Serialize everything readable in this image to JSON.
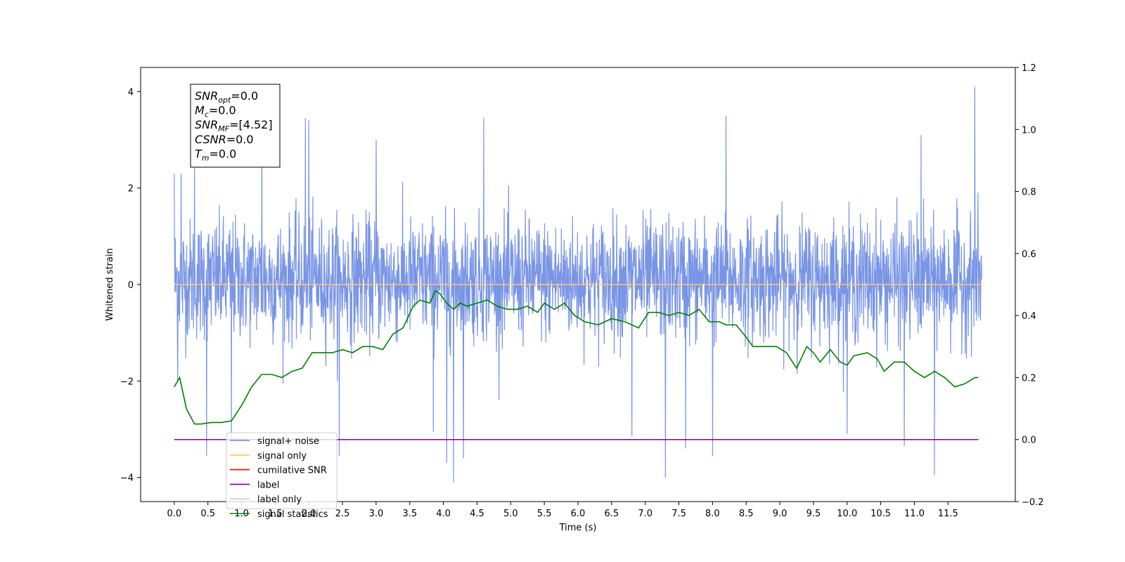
{
  "chart_data": {
    "type": "line",
    "title": "",
    "xlabel": "Time (s)",
    "ylabel": "Whitened strain",
    "y2label": "",
    "xlim": [
      -0.5,
      12.5
    ],
    "ylim": [
      -4.5,
      4.5
    ],
    "y2lim": [
      -0.2,
      1.2
    ],
    "xticks": [
      0.0,
      0.5,
      1.0,
      1.5,
      2.0,
      2.5,
      3.0,
      3.5,
      4.0,
      4.5,
      5.0,
      5.5,
      6.0,
      6.5,
      7.0,
      7.5,
      8.0,
      8.5,
      9.0,
      9.5,
      10.0,
      10.5,
      11.0,
      11.5
    ],
    "xtick_labels": [
      "0.0",
      "0.5",
      "1.0",
      "1.5",
      "2.0",
      "2.5",
      "3.0",
      "3.5",
      "4.0",
      "4.5",
      "5.0",
      "5.5",
      "6.0",
      "6.5",
      "7.0",
      "7.5",
      "8.0",
      "8.5",
      "9.0",
      "9.5",
      "10.0",
      "10.5",
      "11.0",
      "11.5"
    ],
    "yticks": [
      -4,
      -2,
      0,
      2,
      4
    ],
    "ytick_labels": [
      "−4",
      "−2",
      "0",
      "2",
      "4"
    ],
    "y2ticks": [
      -0.2,
      0.0,
      0.2,
      0.4,
      0.6,
      0.8,
      1.0,
      1.2
    ],
    "y2tick_labels": [
      "−0.2",
      "0.0",
      "0.2",
      "0.4",
      "0.6",
      "0.8",
      "1.0",
      "1.2"
    ],
    "grid": false,
    "legend_position": "bottom-left",
    "info_box": {
      "lines": [
        {
          "base": "SNR",
          "sub": "opt",
          "value": "=0.0"
        },
        {
          "base": "M",
          "sub": "c",
          "value": "=0.0"
        },
        {
          "base": "SNR",
          "sub": "MF",
          "value": "=[4.52]"
        },
        {
          "base": "CSNR",
          "sub": "",
          "value": "=0.0"
        },
        {
          "base": "T",
          "sub": "m",
          "value": "=0.0"
        }
      ]
    },
    "series": [
      {
        "name": "signal+ noise",
        "axis": "left",
        "color": "#6a89e3",
        "x_range": [
          0.0,
          12.0
        ],
        "envelope_typical": [
          -1.8,
          2.0
        ],
        "extreme_peaks": [
          {
            "x": 0.0,
            "y": 2.3
          },
          {
            "x": 0.05,
            "y": -2.0
          },
          {
            "x": 0.1,
            "y": 2.3
          },
          {
            "x": 0.3,
            "y": 2.5
          },
          {
            "x": 0.48,
            "y": -3.55
          },
          {
            "x": 0.85,
            "y": -3.2
          },
          {
            "x": 1.3,
            "y": 3.3
          },
          {
            "x": 1.95,
            "y": 3.45
          },
          {
            "x": 2.0,
            "y": 3.4
          },
          {
            "x": 2.45,
            "y": -3.55
          },
          {
            "x": 3.0,
            "y": 3.0
          },
          {
            "x": 3.85,
            "y": -3.05
          },
          {
            "x": 4.05,
            "y": -3.7
          },
          {
            "x": 4.15,
            "y": -4.1
          },
          {
            "x": 4.3,
            "y": -3.6
          },
          {
            "x": 4.6,
            "y": 3.45
          },
          {
            "x": 6.8,
            "y": -3.15
          },
          {
            "x": 7.3,
            "y": -4.0
          },
          {
            "x": 7.6,
            "y": -3.4
          },
          {
            "x": 8.0,
            "y": -3.55
          },
          {
            "x": 8.2,
            "y": 3.5
          },
          {
            "x": 10.0,
            "y": -3.1
          },
          {
            "x": 10.85,
            "y": -3.35
          },
          {
            "x": 11.3,
            "y": -3.95
          },
          {
            "x": 11.1,
            "y": 3.1
          },
          {
            "x": 11.9,
            "y": 4.1
          }
        ]
      },
      {
        "name": "signal only",
        "axis": "left",
        "color": "#ffc66b",
        "x": [
          0.0,
          12.0
        ],
        "y": [
          0.0,
          0.0
        ]
      },
      {
        "name": "cumilative SNR",
        "axis": "right",
        "color": "#ff0000",
        "x": [
          0.0,
          11.95
        ],
        "y": [
          0.0,
          0.0
        ]
      },
      {
        "name": "label",
        "axis": "right",
        "color": "#800080",
        "x": [
          0.0,
          11.95
        ],
        "y": [
          0.0,
          0.0
        ]
      },
      {
        "name": "label only",
        "axis": "right",
        "color": "#cccccc",
        "x": [],
        "y": []
      },
      {
        "name": "signal statistics",
        "axis": "right",
        "color": "#008000",
        "x": [
          0.0,
          0.08,
          0.18,
          0.3,
          0.4,
          0.55,
          0.7,
          0.85,
          1.0,
          1.15,
          1.3,
          1.45,
          1.6,
          1.75,
          1.9,
          2.05,
          2.2,
          2.35,
          2.5,
          2.65,
          2.8,
          2.95,
          3.1,
          3.25,
          3.4,
          3.55,
          3.65,
          3.8,
          3.88,
          3.95,
          4.05,
          4.15,
          4.25,
          4.35,
          4.5,
          4.65,
          4.8,
          4.95,
          5.1,
          5.25,
          5.4,
          5.5,
          5.65,
          5.8,
          5.95,
          6.1,
          6.3,
          6.5,
          6.7,
          6.9,
          7.05,
          7.2,
          7.35,
          7.5,
          7.65,
          7.8,
          7.95,
          8.1,
          8.2,
          8.35,
          8.5,
          8.6,
          8.8,
          8.95,
          9.1,
          9.25,
          9.4,
          9.5,
          9.6,
          9.75,
          9.9,
          10.0,
          10.1,
          10.3,
          10.45,
          10.55,
          10.7,
          10.85,
          11.0,
          11.15,
          11.3,
          11.45,
          11.6,
          11.75,
          11.9,
          11.95
        ],
        "y": [
          0.17,
          0.2,
          0.1,
          0.05,
          0.05,
          0.055,
          0.055,
          0.06,
          0.11,
          0.17,
          0.21,
          0.21,
          0.2,
          0.22,
          0.23,
          0.28,
          0.28,
          0.28,
          0.29,
          0.28,
          0.3,
          0.3,
          0.29,
          0.34,
          0.36,
          0.43,
          0.45,
          0.44,
          0.48,
          0.47,
          0.44,
          0.42,
          0.44,
          0.43,
          0.44,
          0.45,
          0.43,
          0.42,
          0.42,
          0.43,
          0.41,
          0.44,
          0.42,
          0.44,
          0.4,
          0.38,
          0.37,
          0.39,
          0.38,
          0.36,
          0.41,
          0.41,
          0.4,
          0.41,
          0.4,
          0.42,
          0.38,
          0.38,
          0.37,
          0.37,
          0.33,
          0.3,
          0.3,
          0.3,
          0.28,
          0.23,
          0.3,
          0.28,
          0.25,
          0.29,
          0.25,
          0.24,
          0.27,
          0.28,
          0.26,
          0.22,
          0.25,
          0.25,
          0.22,
          0.2,
          0.22,
          0.2,
          0.17,
          0.18,
          0.2,
          0.2
        ]
      }
    ]
  }
}
